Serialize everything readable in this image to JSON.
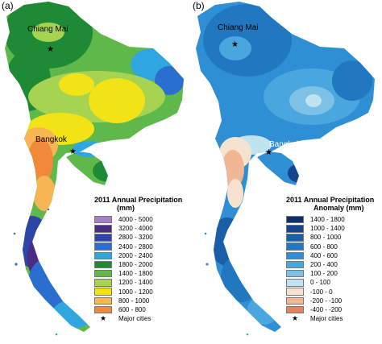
{
  "panel_a": {
    "letter": "(a)",
    "cities": {
      "chiang_mai": "Chiang Mai",
      "bangkok": "Bangkok"
    },
    "legend": {
      "title_line1": "2011 Annual Precipitation",
      "title_line2": "(mm)",
      "items": [
        {
          "range": "4000 - 5000",
          "color": "#a77fc4"
        },
        {
          "range": "3200 - 4000",
          "color": "#4b2c85"
        },
        {
          "range": "2800 - 3200",
          "color": "#2d45a6"
        },
        {
          "range": "2400 - 2800",
          "color": "#2a6fcf"
        },
        {
          "range": "2000 - 2400",
          "color": "#2fa6df"
        },
        {
          "range": "1800 - 2000",
          "color": "#1e8a35"
        },
        {
          "range": "1400 - 1800",
          "color": "#5fb84a"
        },
        {
          "range": "1200 - 1400",
          "color": "#a7d353"
        },
        {
          "range": "1000 - 1200",
          "color": "#f1e316"
        },
        {
          "range": "800 - 1000",
          "color": "#f7b653"
        },
        {
          "range": "600 - 800",
          "color": "#f08a3a"
        }
      ],
      "major_cities": "Major cities"
    }
  },
  "panel_b": {
    "letter": "(b)",
    "cities": {
      "chiang_mai": "Chiang Mai",
      "bangkok": "Bangkok"
    },
    "legend": {
      "title_line1": "2011 Annual Precipitation",
      "title_line2": "Anomaly (mm)",
      "items": [
        {
          "range": "1400 - 1800",
          "color": "#0d2f6b"
        },
        {
          "range": "1000 - 1400",
          "color": "#13468f"
        },
        {
          "range": "800 - 1000",
          "color": "#1a5ea8"
        },
        {
          "range": "600 - 800",
          "color": "#2277c1"
        },
        {
          "range": "400 - 600",
          "color": "#2f8fd4"
        },
        {
          "range": "200 - 400",
          "color": "#4aa6df"
        },
        {
          "range": "100 - 200",
          "color": "#7cc1e6"
        },
        {
          "range": "0 - 100",
          "color": "#bfe3f1"
        },
        {
          "range": "-100 - 0",
          "color": "#f6e2cf"
        },
        {
          "range": "-200 - -100",
          "color": "#f1b694"
        },
        {
          "range": "-400 - -200",
          "color": "#e6825d"
        }
      ],
      "major_cities": "Major cities"
    }
  }
}
